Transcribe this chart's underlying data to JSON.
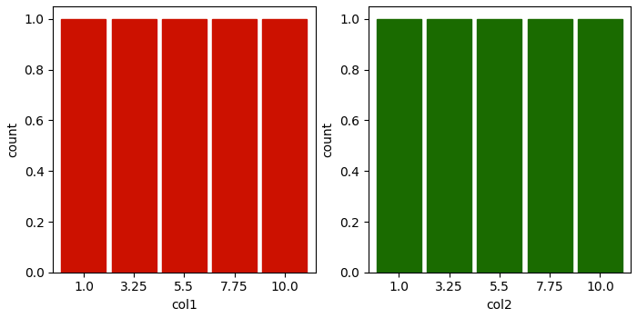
{
  "col1_values": [
    1.0,
    3.25,
    5.5,
    7.75,
    10.0
  ],
  "col2_values": [
    1.0,
    3.25,
    5.5,
    7.75,
    10.0
  ],
  "col1_counts": [
    1,
    1,
    1,
    1,
    1
  ],
  "col2_counts": [
    1,
    1,
    1,
    1,
    1
  ],
  "bar_color_left": "#CC1100",
  "bar_color_right": "#1A6B00",
  "xlabel_left": "col1",
  "xlabel_right": "col2",
  "ylabel": "count",
  "ylim": [
    0.0,
    1.05
  ],
  "xlim": [
    -0.375,
    11.375
  ],
  "yticks": [
    0.0,
    0.2,
    0.4,
    0.6,
    0.8,
    1.0
  ],
  "bar_width": 2.0,
  "figure_width": 7.0,
  "figure_height": 3.5,
  "dpi": 100,
  "background_color": "#ffffff"
}
